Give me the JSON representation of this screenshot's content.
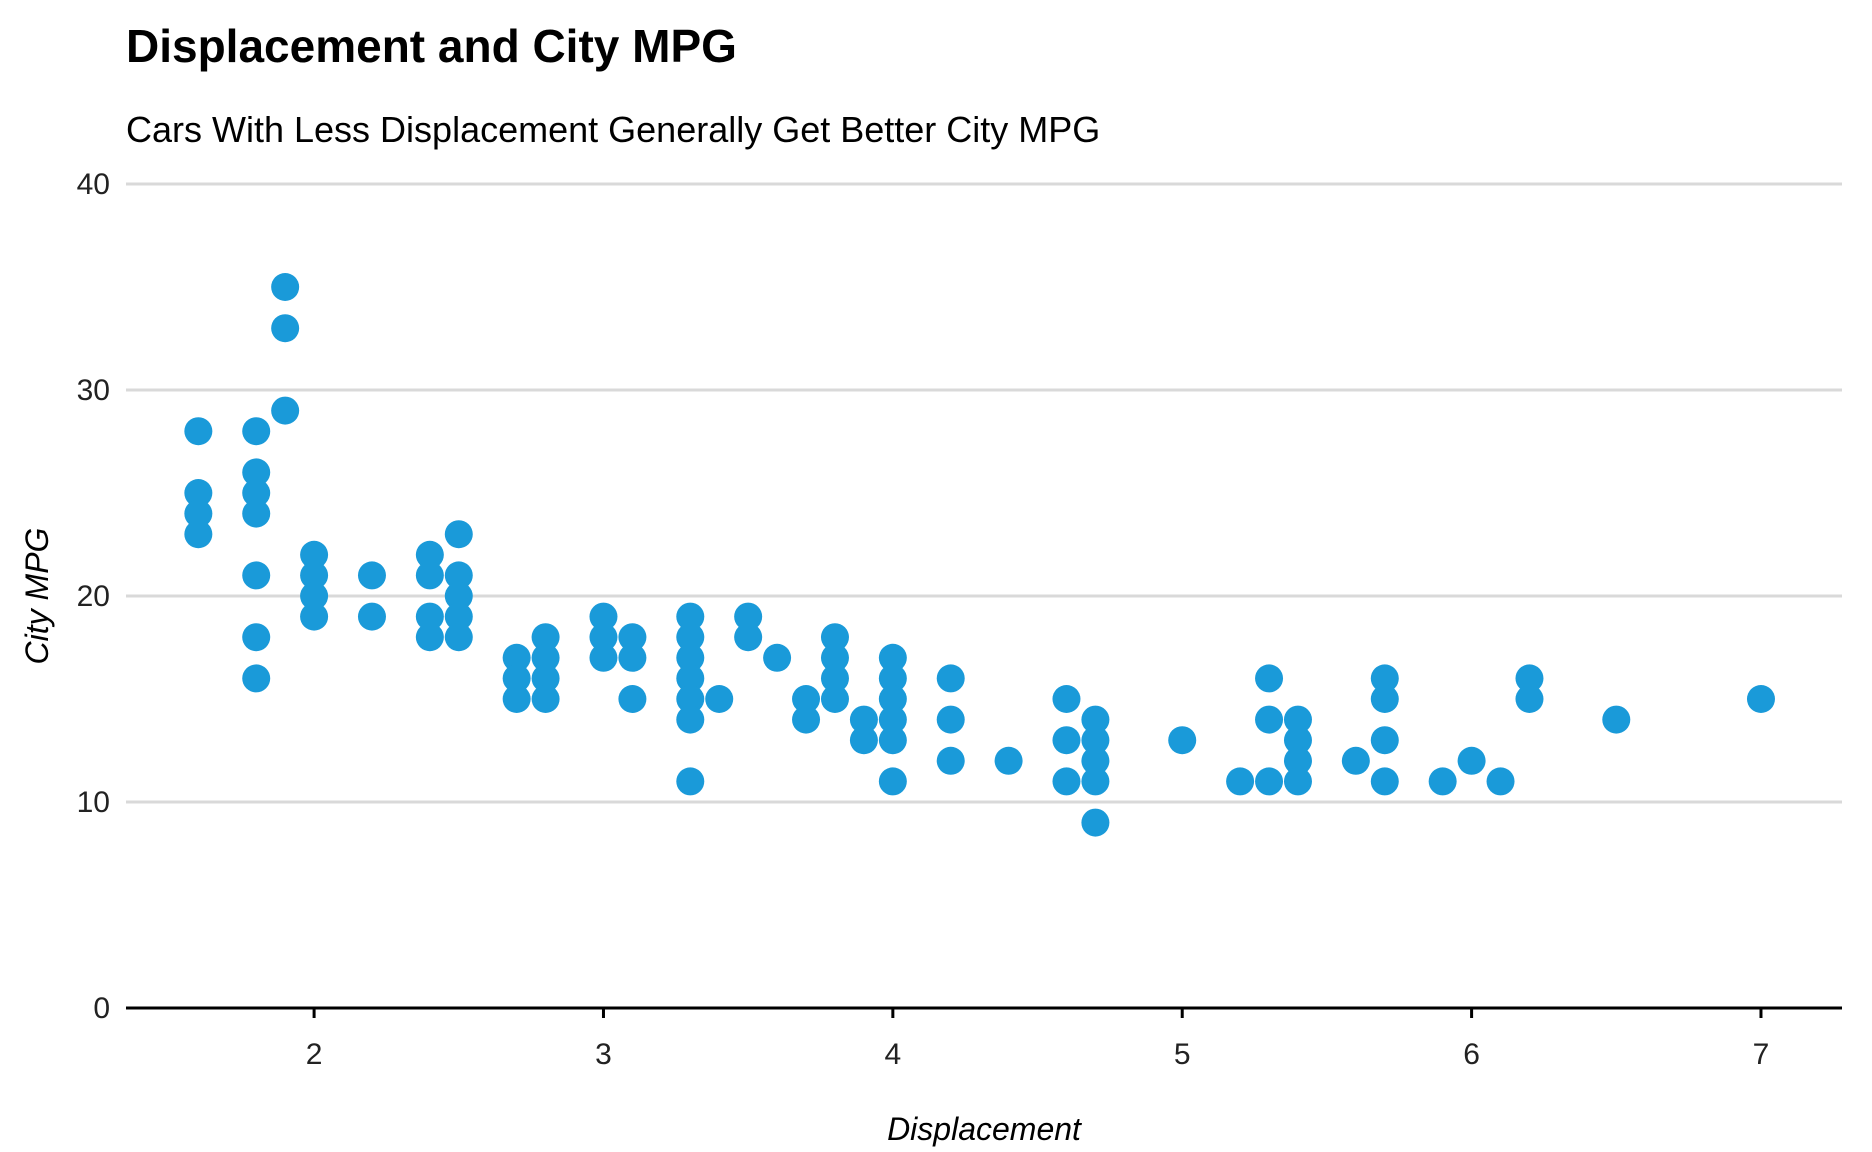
{
  "chart_data": {
    "type": "scatter",
    "title": "Displacement and City MPG",
    "subtitle": "Cars With Less Displacement Generally Get Better City MPG",
    "xlabel": "Displacement",
    "ylabel": "City MPG",
    "xlim": [
      1.35,
      7.28
    ],
    "ylim": [
      0,
      40
    ],
    "x_ticks": [
      2,
      3,
      4,
      5,
      6,
      7
    ],
    "y_ticks": [
      0,
      10,
      20,
      30,
      40
    ],
    "grid": "horizontal",
    "point_color": "#1a9ad9",
    "axis_color": "#000000",
    "grid_color": "#d9d9d9",
    "points": [
      {
        "x": 1.6,
        "y": 28
      },
      {
        "x": 1.6,
        "y": 25
      },
      {
        "x": 1.6,
        "y": 24
      },
      {
        "x": 1.6,
        "y": 23
      },
      {
        "x": 1.8,
        "y": 28
      },
      {
        "x": 1.8,
        "y": 26
      },
      {
        "x": 1.8,
        "y": 25
      },
      {
        "x": 1.8,
        "y": 24
      },
      {
        "x": 1.8,
        "y": 21
      },
      {
        "x": 1.8,
        "y": 18
      },
      {
        "x": 1.8,
        "y": 16
      },
      {
        "x": 1.9,
        "y": 35
      },
      {
        "x": 1.9,
        "y": 33
      },
      {
        "x": 1.9,
        "y": 29
      },
      {
        "x": 2.0,
        "y": 22
      },
      {
        "x": 2.0,
        "y": 21
      },
      {
        "x": 2.0,
        "y": 20
      },
      {
        "x": 2.0,
        "y": 19
      },
      {
        "x": 2.2,
        "y": 21
      },
      {
        "x": 2.2,
        "y": 19
      },
      {
        "x": 2.4,
        "y": 22
      },
      {
        "x": 2.4,
        "y": 21
      },
      {
        "x": 2.4,
        "y": 19
      },
      {
        "x": 2.4,
        "y": 18
      },
      {
        "x": 2.5,
        "y": 23
      },
      {
        "x": 2.5,
        "y": 21
      },
      {
        "x": 2.5,
        "y": 20
      },
      {
        "x": 2.5,
        "y": 19
      },
      {
        "x": 2.5,
        "y": 18
      },
      {
        "x": 2.7,
        "y": 17
      },
      {
        "x": 2.7,
        "y": 16
      },
      {
        "x": 2.7,
        "y": 15
      },
      {
        "x": 2.8,
        "y": 18
      },
      {
        "x": 2.8,
        "y": 17
      },
      {
        "x": 2.8,
        "y": 16
      },
      {
        "x": 2.8,
        "y": 15
      },
      {
        "x": 3.0,
        "y": 19
      },
      {
        "x": 3.0,
        "y": 18
      },
      {
        "x": 3.0,
        "y": 17
      },
      {
        "x": 3.1,
        "y": 18
      },
      {
        "x": 3.1,
        "y": 17
      },
      {
        "x": 3.1,
        "y": 15
      },
      {
        "x": 3.3,
        "y": 19
      },
      {
        "x": 3.3,
        "y": 18
      },
      {
        "x": 3.3,
        "y": 17
      },
      {
        "x": 3.3,
        "y": 16
      },
      {
        "x": 3.3,
        "y": 15
      },
      {
        "x": 3.3,
        "y": 14
      },
      {
        "x": 3.3,
        "y": 11
      },
      {
        "x": 3.4,
        "y": 15
      },
      {
        "x": 3.5,
        "y": 19
      },
      {
        "x": 3.5,
        "y": 18
      },
      {
        "x": 3.6,
        "y": 17
      },
      {
        "x": 3.7,
        "y": 15
      },
      {
        "x": 3.7,
        "y": 14
      },
      {
        "x": 3.8,
        "y": 18
      },
      {
        "x": 3.8,
        "y": 17
      },
      {
        "x": 3.8,
        "y": 16
      },
      {
        "x": 3.8,
        "y": 15
      },
      {
        "x": 3.9,
        "y": 14
      },
      {
        "x": 3.9,
        "y": 13
      },
      {
        "x": 4.0,
        "y": 17
      },
      {
        "x": 4.0,
        "y": 16
      },
      {
        "x": 4.0,
        "y": 15
      },
      {
        "x": 4.0,
        "y": 14
      },
      {
        "x": 4.0,
        "y": 13
      },
      {
        "x": 4.0,
        "y": 11
      },
      {
        "x": 4.2,
        "y": 16
      },
      {
        "x": 4.2,
        "y": 14
      },
      {
        "x": 4.2,
        "y": 12
      },
      {
        "x": 4.4,
        "y": 12
      },
      {
        "x": 4.6,
        "y": 15
      },
      {
        "x": 4.6,
        "y": 13
      },
      {
        "x": 4.6,
        "y": 11
      },
      {
        "x": 4.7,
        "y": 14
      },
      {
        "x": 4.7,
        "y": 13
      },
      {
        "x": 4.7,
        "y": 12
      },
      {
        "x": 4.7,
        "y": 11
      },
      {
        "x": 4.7,
        "y": 9
      },
      {
        "x": 5.0,
        "y": 13
      },
      {
        "x": 5.2,
        "y": 11
      },
      {
        "x": 5.3,
        "y": 16
      },
      {
        "x": 5.3,
        "y": 14
      },
      {
        "x": 5.3,
        "y": 11
      },
      {
        "x": 5.4,
        "y": 14
      },
      {
        "x": 5.4,
        "y": 13
      },
      {
        "x": 5.4,
        "y": 12
      },
      {
        "x": 5.4,
        "y": 11
      },
      {
        "x": 5.6,
        "y": 12
      },
      {
        "x": 5.7,
        "y": 16
      },
      {
        "x": 5.7,
        "y": 15
      },
      {
        "x": 5.7,
        "y": 13
      },
      {
        "x": 5.7,
        "y": 11
      },
      {
        "x": 5.9,
        "y": 11
      },
      {
        "x": 6.0,
        "y": 12
      },
      {
        "x": 6.1,
        "y": 11
      },
      {
        "x": 6.2,
        "y": 16
      },
      {
        "x": 6.2,
        "y": 15
      },
      {
        "x": 6.5,
        "y": 14
      },
      {
        "x": 7.0,
        "y": 15
      }
    ]
  }
}
